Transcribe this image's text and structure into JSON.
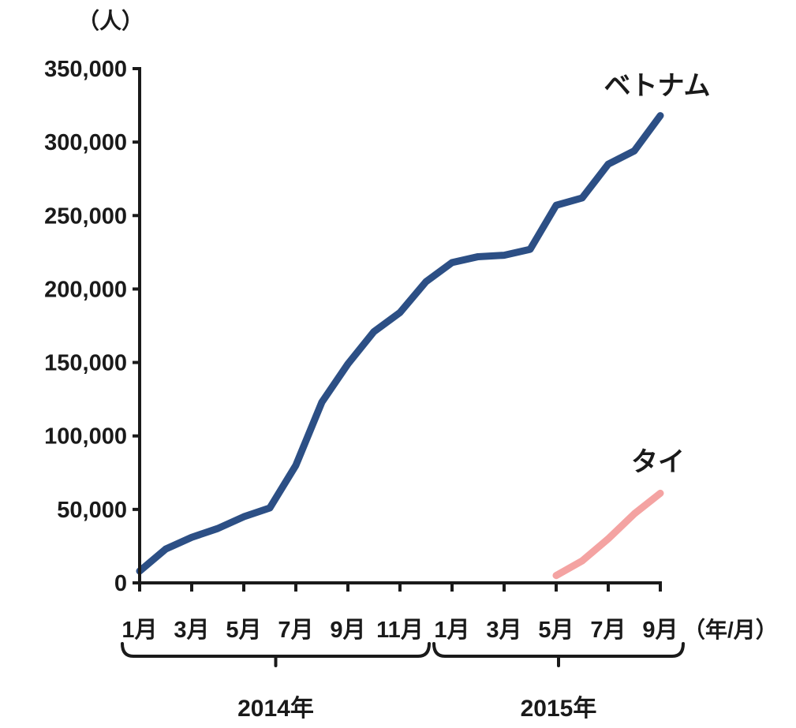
{
  "chart_data": {
    "type": "line",
    "y_unit": "（人）",
    "x_unit": "（年/月）",
    "ylim": [
      0,
      350000
    ],
    "y_ticks": [
      0,
      50000,
      100000,
      150000,
      200000,
      250000,
      300000,
      350000
    ],
    "y_tick_labels": [
      "0",
      "50,000",
      "100,000",
      "150,000",
      "200,000",
      "250,000",
      "300,000",
      "350,000"
    ],
    "x": [
      "2014/1",
      "2014/2",
      "2014/3",
      "2014/4",
      "2014/5",
      "2014/6",
      "2014/7",
      "2014/8",
      "2014/9",
      "2014/10",
      "2014/11",
      "2014/12",
      "2015/1",
      "2015/2",
      "2015/3",
      "2015/4",
      "2015/5",
      "2015/6",
      "2015/7",
      "2015/8",
      "2015/9"
    ],
    "x_tick_labels": [
      "1月",
      "3月",
      "5月",
      "7月",
      "9月",
      "11月",
      "1月",
      "3月",
      "5月",
      "7月",
      "9月"
    ],
    "x_tick_label_positions": [
      "2014/1",
      "2014/3",
      "2014/5",
      "2014/7",
      "2014/9",
      "2014/11",
      "2015/1",
      "2015/3",
      "2015/5",
      "2015/7",
      "2015/9"
    ],
    "year_groups": [
      {
        "label": "2014年",
        "from": "2014/1",
        "to": "2014/12"
      },
      {
        "label": "2015年",
        "from": "2015/1",
        "to": "2015/9"
      }
    ],
    "series": [
      {
        "name": "ベトナム",
        "color": "#2c4f85",
        "values": [
          8000,
          23000,
          31000,
          37000,
          45000,
          51000,
          80000,
          123000,
          149000,
          171000,
          184000,
          205000,
          218000,
          222000,
          223000,
          227000,
          257000,
          262000,
          285000,
          294000,
          318000
        ]
      },
      {
        "name": "タイ",
        "color": "#f4a3a2",
        "values": [
          null,
          null,
          null,
          null,
          null,
          null,
          null,
          null,
          null,
          null,
          null,
          null,
          null,
          null,
          null,
          null,
          5000,
          15000,
          30000,
          47000,
          61000
        ]
      }
    ]
  }
}
